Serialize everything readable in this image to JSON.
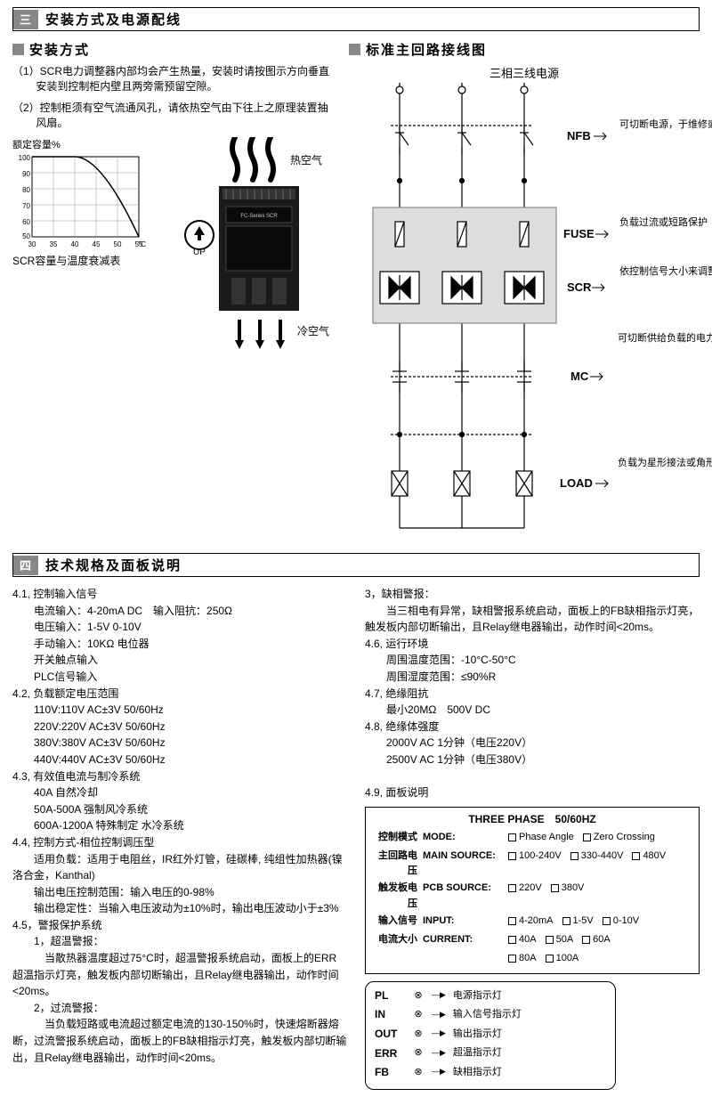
{
  "section3": {
    "num": "三",
    "title": "安装方式及电源配线",
    "left": {
      "subtitle": "安装方式",
      "para1": "（1）SCR电力调整器内部均会产生热量，安装时请按图示方向垂直安装到控制柜内壁且两旁需预留空隙。",
      "para2": "（2）控制柜须有空气流通风孔，请依热空气由下往上之原理装置抽风扇。",
      "chart_caption_top": "额定容量%",
      "chart_caption_bottom": "SCR容量与温度衰减表",
      "chart": {
        "y_vals": [
          100,
          90,
          80,
          70,
          60,
          50
        ],
        "x_vals": [
          30,
          35,
          40,
          45,
          50,
          55
        ],
        "x_unit": "°C",
        "line_color": "#000",
        "grid_color": "#777",
        "bg": "#fff"
      },
      "hot_air": "热空气",
      "cold_air": "冷空气",
      "up_label": "UP",
      "device_label": "FC-Series SCR"
    },
    "right": {
      "subtitle": "标准主回路接线图",
      "top_label": "三相三线电源",
      "rows": [
        {
          "tag": "NFB",
          "desc": "可切断电源，于维修或保养时避免人员触电。"
        },
        {
          "tag": "FUSE",
          "desc": "负载过流或短路保护"
        },
        {
          "tag": "SCR",
          "desc": "依控制信号大小来调整输出电流，达到控温效果。"
        },
        {
          "tag": "MC",
          "desc": "可切断供给负载的电力，于SCR电力调整器故障或温度高于设定过多时，切断电源，以避免高温烧毁设备或发生事故。"
        },
        {
          "tag": "LOAD",
          "desc": "负载为星形接法或角形接法均可，中心不能接零线或接地。"
        }
      ]
    }
  },
  "section4": {
    "num": "四",
    "title": "技术规格及面板说明",
    "left": [
      "4.1, 控制输入信号",
      "　　电流输入：4-20mA DC　输入阻抗：250Ω",
      "　　电压输入：1-5V 0-10V",
      "　　手动输入：10KΩ 电位器",
      "　　开关触点输入",
      "　　PLC信号输入",
      "4.2, 负载额定电压范围",
      "　　110V:110V AC±3V 50/60Hz",
      "　　220V:220V AC±3V 50/60Hz",
      "　　380V:380V AC±3V 50/60Hz",
      "　　440V:440V AC±3V 50/60Hz",
      "4.3, 有效值电流与制冷系统",
      "　　40A 自然冷却",
      "　　50A-500A 强制风冷系统",
      "　　600A-1200A 特殊制定 水冷系统",
      "4.4, 控制方式-相位控制调压型",
      "　　适用负载：适用于电阻丝，IR红外灯管，硅碳棒, 纯组性加热器(镍洛合金，Kanthal)",
      "　　输出电压控制范围：输入电压的0-98%",
      "　　输出稳定性：当输入电压波动为±10%时，输出电压波动小于±3%",
      "4.5，警报保护系统",
      "　　1，超温警报：",
      "　　　当散热器温度超过75°C时，超温警报系统启动，面板上的ERR超温指示灯亮，触发板内部切断输出，且Relay继电器输出，动作时间<20ms。",
      "　　2，过流警报：",
      "　　　当负载短路或电流超过额定电流的130-150%时，快速熔断器熔断，过流警报系统启动，面板上的FB缺相指示灯亮，触发板内部切断输出，且Relay继电器输出，动作时间<20ms。"
    ],
    "right_top": [
      "3，缺相警报：",
      "　　当三相电有异常，缺相警报系统启动，面板上的FB缺相指示灯亮，触发板内部切断输出，且Relay继电器输出，动作时间<20ms。",
      "4.6, 运行环境",
      "　　周围温度范围：-10°C-50°C",
      "　　周围湿度范围：≤90%R",
      "4.7, 绝缘阻抗",
      "　　最小20MΩ　500V DC",
      "4.8, 绝缘体强度",
      "　　2000V AC 1分钟（电压220V）",
      "　　2500V AC 1分钟（电压380V）",
      "",
      "4.9, 面板说明"
    ],
    "panel": {
      "title": "THREE PHASE　50/60HZ",
      "rows": [
        {
          "zh": "控制模式",
          "en": "MODE:",
          "opts": [
            "Phase Angle",
            "Zero Crossing"
          ]
        },
        {
          "zh": "主回路电压",
          "en": "MAIN SOURCE:",
          "opts": [
            "100-240V",
            "330-440V",
            "480V"
          ]
        },
        {
          "zh": "触发板电压",
          "en": "PCB SOURCE:",
          "opts": [
            "220V",
            "380V"
          ]
        },
        {
          "zh": "输入信号",
          "en": "INPUT:",
          "opts": [
            "4-20mA",
            "1-5V",
            "0-10V"
          ]
        },
        {
          "zh": "电流大小",
          "en": "CURRENT:",
          "opts": [
            "40A",
            "50A",
            "60A"
          ]
        },
        {
          "zh": "",
          "en": "",
          "opts": [
            "80A",
            "100A",
            ""
          ]
        }
      ]
    },
    "leds": [
      {
        "tag": "PL",
        "desc": "电源指示灯"
      },
      {
        "tag": "IN",
        "desc": "输入信号指示灯"
      },
      {
        "tag": "OUT",
        "desc": "输出指示灯"
      },
      {
        "tag": "ERR",
        "desc": "超温指示灯"
      },
      {
        "tag": "FB",
        "desc": "缺相指示灯"
      }
    ]
  }
}
